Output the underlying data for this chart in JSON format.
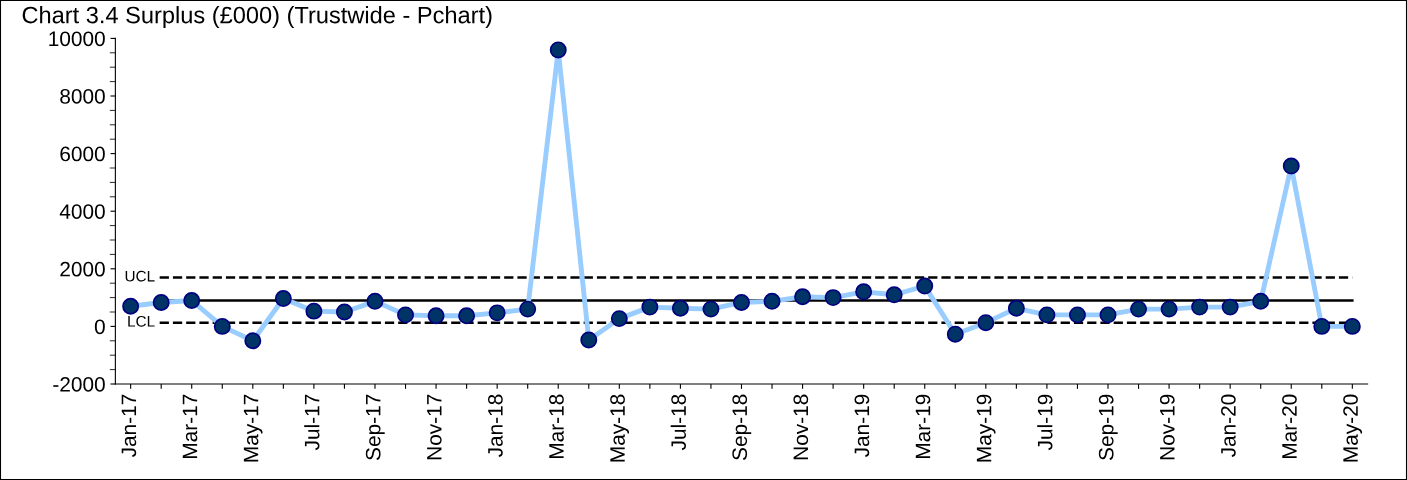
{
  "chart_data": {
    "type": "line",
    "title": "Chart 3.4 Surplus (£000) (Trustwide - Pchart)",
    "categories": [
      "Jan-17",
      null,
      "Mar-17",
      null,
      "May-17",
      null,
      "Jul-17",
      null,
      "Sep-17",
      null,
      "Nov-17",
      null,
      "Jan-18",
      null,
      "Mar-18",
      null,
      "May-18",
      null,
      "Jul-18",
      null,
      "Sep-18",
      null,
      "Nov-18",
      null,
      "Jan-19",
      null,
      "Mar-19",
      null,
      "May-19",
      null,
      "Jul-19",
      null,
      "Sep-19",
      null,
      "Nov-19",
      null,
      "Jan-20",
      null,
      "Mar-20",
      null,
      "May-20"
    ],
    "series": [
      {
        "color": "#99ccff",
        "values": [
          700,
          830,
          900,
          0,
          -500,
          970,
          530,
          500,
          870,
          400,
          370,
          370,
          470,
          600,
          9600,
          -470,
          270,
          670,
          630,
          600,
          830,
          870,
          1030,
          1000,
          1200,
          1100,
          1400,
          -270,
          130,
          630,
          400,
          400,
          400,
          600,
          600,
          670,
          670,
          870,
          5570,
          0,
          0
        ]
      }
    ],
    "marker": "circle",
    "line_style": "solid",
    "grid": false,
    "legend": false,
    "ylim": [
      -2000,
      10000
    ],
    "yticks": [
      -2000,
      0,
      2000,
      4000,
      6000,
      8000,
      10000
    ],
    "ref_lines": [
      {
        "axis": "y",
        "value": 1700,
        "label": "UCL",
        "line_style": "dashed",
        "color": "#000000"
      },
      {
        "axis": "y",
        "value": 900,
        "label": null,
        "line_style": "solid",
        "color": "#000000"
      },
      {
        "axis": "y",
        "value": 130,
        "label": "LCL",
        "line_style": "dashed",
        "color": "#000000"
      }
    ]
  }
}
